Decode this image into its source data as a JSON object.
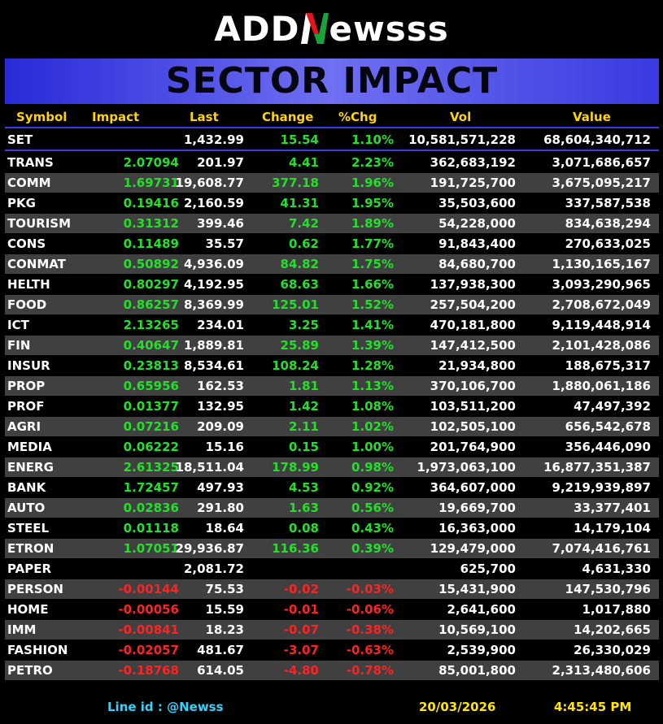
{
  "logo": {
    "part1": "ADD",
    "part2": "ews",
    "part3": "ss"
  },
  "title": "SECTOR IMPACT",
  "colors": {
    "positive": "#22e02a",
    "negative": "#ff2222",
    "header": "#ffd400",
    "banner": "#5a5aee"
  },
  "headers": {
    "symbol": "Symbol",
    "impact": "Impact",
    "last": "Last",
    "change": "Change",
    "pct": "%Chg",
    "vol": "Vol",
    "value": "Value"
  },
  "set_row": {
    "symbol": "SET",
    "impact": "",
    "last": "1,432.99",
    "change": "15.54",
    "pct": "1.10%",
    "vol": "10,581,571,228",
    "value": "68,604,340,712",
    "dir": "pos"
  },
  "rows": [
    {
      "symbol": "TRANS",
      "impact": "2.07094",
      "last": "201.97",
      "change": "4.41",
      "pct": "2.23%",
      "vol": "362,683,192",
      "value": "3,071,686,657",
      "dir": "pos"
    },
    {
      "symbol": "COMM",
      "impact": "1.69731",
      "last": "19,608.77",
      "change": "377.18",
      "pct": "1.96%",
      "vol": "191,725,700",
      "value": "3,675,095,217",
      "dir": "pos"
    },
    {
      "symbol": "PKG",
      "impact": "0.19416",
      "last": "2,160.59",
      "change": "41.31",
      "pct": "1.95%",
      "vol": "35,503,600",
      "value": "337,587,538",
      "dir": "pos"
    },
    {
      "symbol": "TOURISM",
      "impact": "0.31312",
      "last": "399.46",
      "change": "7.42",
      "pct": "1.89%",
      "vol": "54,228,000",
      "value": "834,638,294",
      "dir": "pos"
    },
    {
      "symbol": "CONS",
      "impact": "0.11489",
      "last": "35.57",
      "change": "0.62",
      "pct": "1.77%",
      "vol": "91,843,400",
      "value": "270,633,025",
      "dir": "pos"
    },
    {
      "symbol": "CONMAT",
      "impact": "0.50892",
      "last": "4,936.09",
      "change": "84.82",
      "pct": "1.75%",
      "vol": "84,680,700",
      "value": "1,130,165,167",
      "dir": "pos"
    },
    {
      "symbol": "HELTH",
      "impact": "0.80297",
      "last": "4,192.95",
      "change": "68.63",
      "pct": "1.66%",
      "vol": "137,938,300",
      "value": "3,093,290,965",
      "dir": "pos"
    },
    {
      "symbol": "FOOD",
      "impact": "0.86257",
      "last": "8,369.99",
      "change": "125.01",
      "pct": "1.52%",
      "vol": "257,504,200",
      "value": "2,708,672,049",
      "dir": "pos"
    },
    {
      "symbol": "ICT",
      "impact": "2.13265",
      "last": "234.01",
      "change": "3.25",
      "pct": "1.41%",
      "vol": "470,181,800",
      "value": "9,119,448,914",
      "dir": "pos"
    },
    {
      "symbol": "FIN",
      "impact": "0.40647",
      "last": "1,889.81",
      "change": "25.89",
      "pct": "1.39%",
      "vol": "147,412,500",
      "value": "2,101,428,086",
      "dir": "pos"
    },
    {
      "symbol": "INSUR",
      "impact": "0.23813",
      "last": "8,534.61",
      "change": "108.24",
      "pct": "1.28%",
      "vol": "21,934,800",
      "value": "188,675,317",
      "dir": "pos"
    },
    {
      "symbol": "PROP",
      "impact": "0.65956",
      "last": "162.53",
      "change": "1.81",
      "pct": "1.13%",
      "vol": "370,106,700",
      "value": "1,880,061,186",
      "dir": "pos"
    },
    {
      "symbol": "PROF",
      "impact": "0.01377",
      "last": "132.95",
      "change": "1.42",
      "pct": "1.08%",
      "vol": "103,511,200",
      "value": "47,497,392",
      "dir": "pos"
    },
    {
      "symbol": "AGRI",
      "impact": "0.07216",
      "last": "209.09",
      "change": "2.11",
      "pct": "1.02%",
      "vol": "102,505,100",
      "value": "656,542,678",
      "dir": "pos"
    },
    {
      "symbol": "MEDIA",
      "impact": "0.06222",
      "last": "15.16",
      "change": "0.15",
      "pct": "1.00%",
      "vol": "201,764,900",
      "value": "356,446,090",
      "dir": "pos"
    },
    {
      "symbol": "ENERG",
      "impact": "2.61325",
      "last": "18,511.04",
      "change": "178.99",
      "pct": "0.98%",
      "vol": "1,973,063,100",
      "value": "16,877,351,387",
      "dir": "pos"
    },
    {
      "symbol": "BANK",
      "impact": "1.72457",
      "last": "497.93",
      "change": "4.53",
      "pct": "0.92%",
      "vol": "364,607,000",
      "value": "9,219,939,897",
      "dir": "pos"
    },
    {
      "symbol": "AUTO",
      "impact": "0.02836",
      "last": "291.80",
      "change": "1.63",
      "pct": "0.56%",
      "vol": "19,669,700",
      "value": "33,377,401",
      "dir": "pos"
    },
    {
      "symbol": "STEEL",
      "impact": "0.01118",
      "last": "18.64",
      "change": "0.08",
      "pct": "0.43%",
      "vol": "16,363,000",
      "value": "14,179,104",
      "dir": "pos"
    },
    {
      "symbol": "ETRON",
      "impact": "1.07051",
      "last": "29,936.87",
      "change": "116.36",
      "pct": "0.39%",
      "vol": "129,479,000",
      "value": "7,074,416,761",
      "dir": "pos"
    },
    {
      "symbol": "PAPER",
      "impact": "",
      "last": "2,081.72",
      "change": "",
      "pct": "",
      "vol": "625,700",
      "value": "4,631,330",
      "dir": "none"
    },
    {
      "symbol": "PERSON",
      "impact": "-0.00144",
      "last": "75.53",
      "change": "-0.02",
      "pct": "-0.03%",
      "vol": "15,431,900",
      "value": "147,530,796",
      "dir": "neg"
    },
    {
      "symbol": "HOME",
      "impact": "-0.00056",
      "last": "15.59",
      "change": "-0.01",
      "pct": "-0.06%",
      "vol": "2,641,600",
      "value": "1,017,880",
      "dir": "neg"
    },
    {
      "symbol": "IMM",
      "impact": "-0.00841",
      "last": "18.23",
      "change": "-0.07",
      "pct": "-0.38%",
      "vol": "10,569,100",
      "value": "14,202,665",
      "dir": "neg"
    },
    {
      "symbol": "FASHION",
      "impact": "-0.02057",
      "last": "481.67",
      "change": "-3.07",
      "pct": "-0.63%",
      "vol": "2,539,900",
      "value": "26,330,029",
      "dir": "neg"
    },
    {
      "symbol": "PETRO",
      "impact": "-0.18768",
      "last": "614.05",
      "change": "-4.80",
      "pct": "-0.78%",
      "vol": "85,001,800",
      "value": "2,313,480,606",
      "dir": "neg"
    }
  ],
  "footer": {
    "line_id": "Line id  : @Newss",
    "date": "20/03/2026",
    "time": "4:45:45 PM"
  }
}
